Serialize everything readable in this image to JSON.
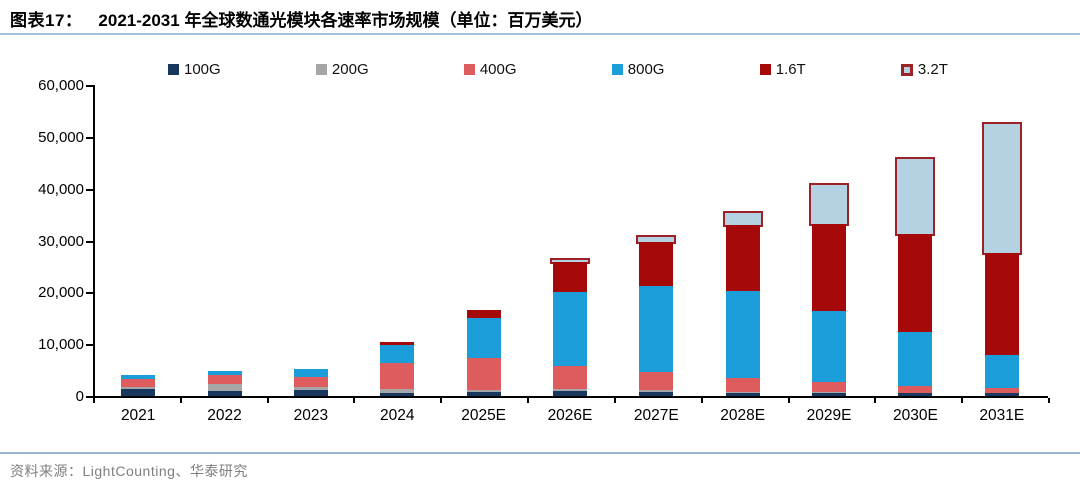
{
  "header": {
    "prefix": "图表17：",
    "title": "2021-2031 年全球数通光模块各速率市场规模（单位：百万美元）"
  },
  "source": "资料来源：LightCounting、华泰研究",
  "colors": {
    "title_rule": "#A5C0DC",
    "source_rule": "#9BB6D4",
    "axis": "#000000"
  },
  "chart_data": {
    "type": "bar",
    "subtype": "stacked",
    "title": "2021-2031 年全球数通光模块各速率市场规模",
    "unit": "百万美元",
    "legend_position": "top",
    "grid": false,
    "categories": [
      "2021",
      "2022",
      "2023",
      "2024",
      "2025E",
      "2026E",
      "2027E",
      "2028E",
      "2029E",
      "2030E",
      "2031E"
    ],
    "series": [
      {
        "name": "100G",
        "color": "#17375E",
        "values": [
          1300,
          950,
          1100,
          650,
          800,
          900,
          800,
          600,
          600,
          500,
          500
        ]
      },
      {
        "name": "200G",
        "color": "#A6A6A6",
        "values": [
          400,
          1350,
          650,
          650,
          450,
          500,
          400,
          200,
          200,
          100,
          100
        ]
      },
      {
        "name": "400G",
        "color": "#DE5C5E",
        "values": [
          1550,
          1750,
          1900,
          5000,
          6200,
          4400,
          3500,
          2700,
          1900,
          1400,
          1000
        ]
      },
      {
        "name": "800G",
        "color": "#1B9DD9",
        "values": [
          750,
          780,
          1550,
          3500,
          7700,
          14200,
          16500,
          16700,
          13800,
          10300,
          6400
        ]
      },
      {
        "name": "1.6T",
        "color": "#A40808",
        "values": [
          0,
          0,
          0,
          600,
          1400,
          5900,
          8600,
          12800,
          16800,
          19000,
          19600
        ]
      },
      {
        "name": "3.2T",
        "color": "#B4D2E2",
        "border": "#9B2226",
        "outlined": true,
        "values": [
          0,
          0,
          0,
          0,
          0,
          300,
          900,
          2400,
          7400,
          14500,
          24800
        ]
      }
    ],
    "totals": [
      4000,
      4830,
      5200,
      10400,
      16550,
      26200,
      30700,
      35400,
      40700,
      45800,
      52400
    ],
    "ylim": [
      0,
      60000
    ],
    "yticks": [
      "0",
      "10,000",
      "20,000",
      "30,000",
      "40,000",
      "50,000",
      "60,000"
    ]
  }
}
